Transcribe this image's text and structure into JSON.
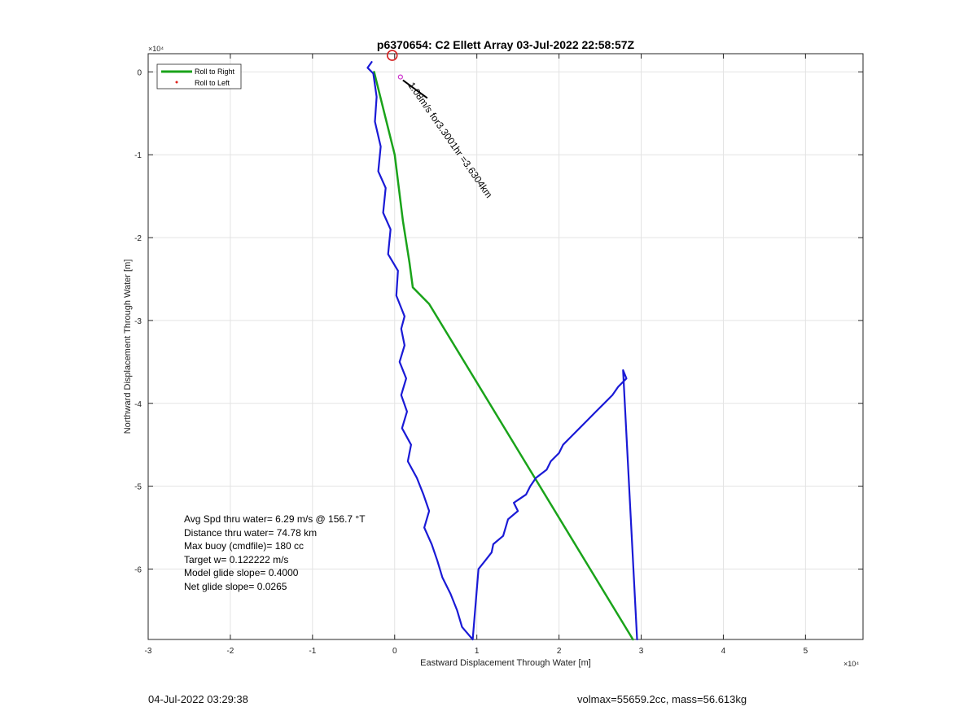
{
  "chart_data": {
    "type": "line",
    "title": "p6370654: C2 Ellett Array 03-Jul-2022 22:58:57Z",
    "xlabel": "Eastward Displacement Through Water [m]",
    "ylabel": "Northward Displacement Through Water [m]",
    "x_exponent": "×10⁴",
    "y_exponent": "×10⁴",
    "xlim": [
      -3,
      5.7
    ],
    "ylim": [
      -6.85,
      0.22
    ],
    "x_ticks": [
      -3,
      -2,
      -1,
      0,
      1,
      2,
      3,
      4,
      5
    ],
    "y_ticks": [
      0,
      -1,
      -2,
      -3,
      -4,
      -5,
      -6
    ],
    "x_tick_labels": [
      "-3",
      "-2",
      "-1",
      "0",
      "1",
      "2",
      "3",
      "4",
      "5"
    ],
    "y_tick_labels": [
      "0",
      "-1",
      "-2",
      "-3",
      "-4",
      "-5",
      "-6"
    ],
    "grid": true,
    "legend_position": "top-left",
    "legend": [
      {
        "label": "Roll to Right",
        "color": "#1aa31a",
        "style": "line"
      },
      {
        "label": "Roll to Left",
        "color": "#e0201a",
        "style": "dot"
      }
    ],
    "series": [
      {
        "name": "Roll to Right",
        "color": "#1aa31a",
        "x": [
          -0.25,
          0.0,
          0.1,
          0.18,
          0.22,
          0.42,
          2.9
        ],
        "y": [
          0.0,
          -1.0,
          -1.8,
          -2.3,
          -2.6,
          -2.8,
          -6.85
        ]
      },
      {
        "color": "#1a1ad6",
        "x": [
          -0.28,
          -0.33,
          -0.26,
          -0.22,
          -0.24,
          -0.17,
          -0.2,
          -0.11,
          -0.14,
          -0.05,
          -0.08,
          0.04,
          0.02,
          0.12,
          0.08,
          0.12,
          0.06,
          0.14,
          0.08,
          0.15,
          0.09,
          0.2,
          0.16,
          0.27,
          0.35,
          0.42,
          0.36,
          0.45,
          0.52,
          0.58,
          0.68,
          0.76,
          0.82,
          0.95,
          1.02,
          1.1,
          1.18,
          1.2,
          1.32,
          1.35,
          1.38,
          1.5,
          1.45,
          1.6,
          1.65,
          1.72,
          1.85,
          1.9,
          2.0,
          2.05,
          2.15,
          2.25,
          2.35,
          2.45,
          2.55,
          2.65,
          2.72,
          2.82,
          2.78,
          2.95
        ],
        "y": [
          0.12,
          0.05,
          -0.02,
          -0.3,
          -0.6,
          -0.9,
          -1.2,
          -1.4,
          -1.7,
          -1.9,
          -2.2,
          -2.4,
          -2.7,
          -2.95,
          -3.1,
          -3.3,
          -3.5,
          -3.7,
          -3.9,
          -4.1,
          -4.3,
          -4.5,
          -4.7,
          -4.9,
          -5.1,
          -5.3,
          -5.5,
          -5.7,
          -5.9,
          -6.1,
          -6.3,
          -6.5,
          -6.7,
          -6.85,
          -6.0,
          -5.9,
          -5.8,
          -5.7,
          -5.6,
          -5.5,
          -5.4,
          -5.3,
          -5.2,
          -5.1,
          -5.0,
          -4.9,
          -4.8,
          -4.7,
          -4.6,
          -4.5,
          -4.4,
          -4.3,
          -4.2,
          -4.1,
          -4.0,
          -3.9,
          -3.8,
          -3.7,
          -3.6,
          -6.85
        ]
      }
    ],
    "annotations": [
      {
        "text": "1.08m/s for3.3001hr =3.6304km",
        "x": 0.1,
        "y": -0.1,
        "angle_deg": 55
      }
    ],
    "start_marker": {
      "x": -0.03,
      "y": 0.2,
      "color": "#d42020"
    },
    "stats": [
      "Avg Spd thru water=  6.29 m/s @ 156.7 °T",
      "Distance thru water= 74.78 km",
      "Max buoy (cmdfile)= 180 cc",
      "Target w= 0.122222 m/s",
      "Model glide slope= 0.4000",
      "Net glide slope= 0.0265"
    ]
  },
  "footer": {
    "left": "04-Jul-2022 03:29:38",
    "right": "volmax=55659.2cc, mass=56.613kg"
  }
}
